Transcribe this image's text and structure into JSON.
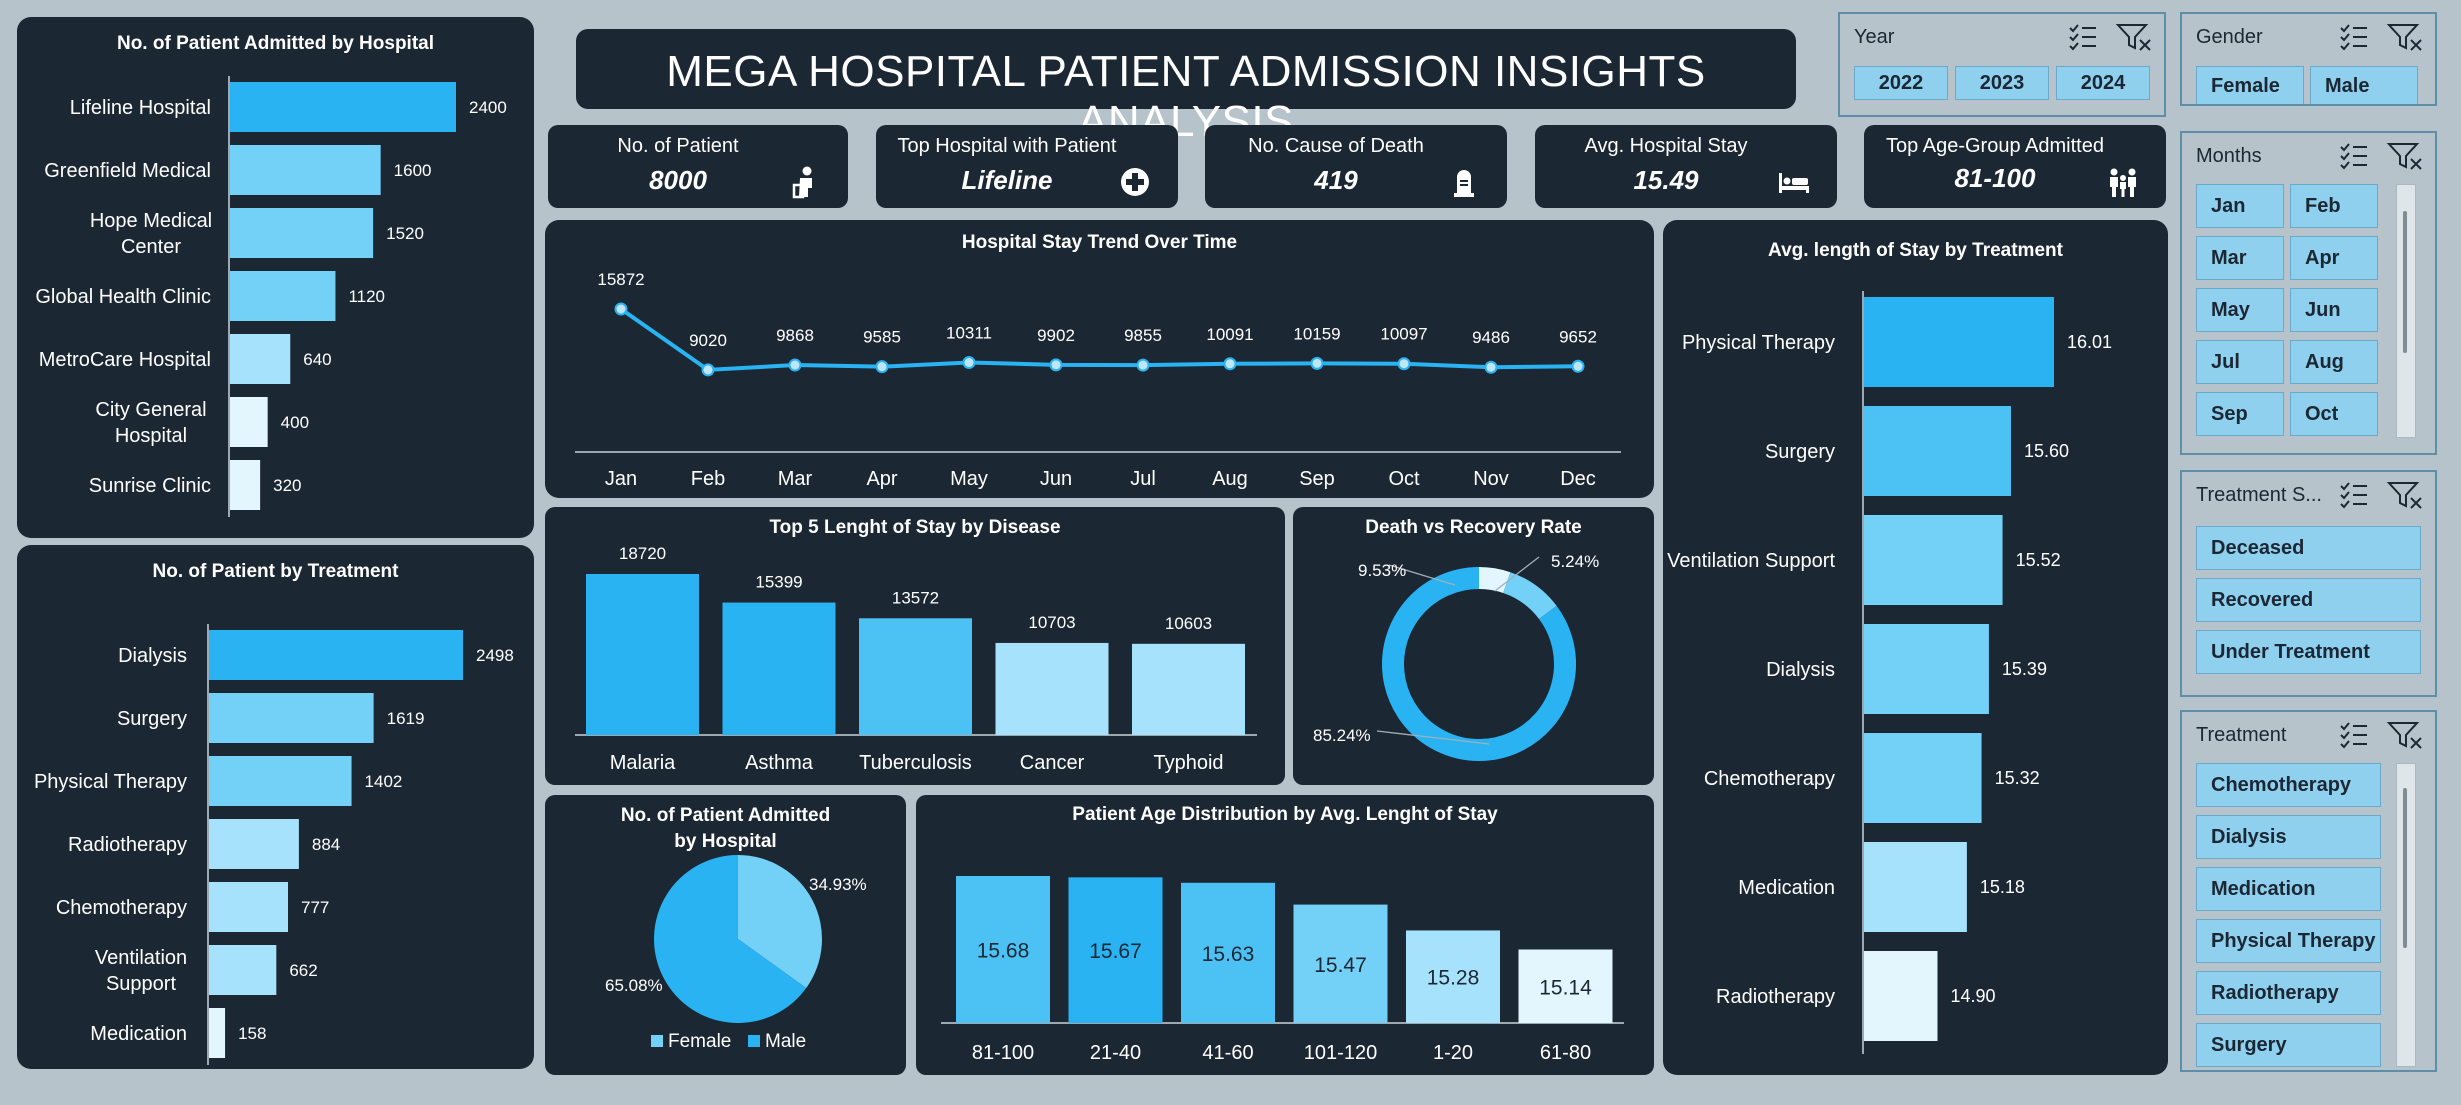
{
  "dashboard": {
    "title": "MEGA HOSPITAL PATIENT ADMISSION INSIGHTS ANALYSIS"
  },
  "kpis": [
    {
      "label": "No. of Patient",
      "value": "8000",
      "icon": "patient-icon"
    },
    {
      "label": "Top Hospital with Patient",
      "value": "Lifeline",
      "icon": "medical-cross-icon"
    },
    {
      "label": "No. Cause of Death",
      "value": "419",
      "icon": "tombstone-icon"
    },
    {
      "label": "Avg. Hospital Stay",
      "value": "15.49",
      "icon": "hospital-bed-icon"
    },
    {
      "label": "Top Age-Group Admitted",
      "value": "81-100",
      "icon": "family-icon"
    }
  ],
  "slicers": {
    "year": {
      "title": "Year",
      "options": [
        "2022",
        "2023",
        "2024"
      ]
    },
    "gender": {
      "title": "Gender",
      "options": [
        "Female",
        "Male"
      ]
    },
    "months": {
      "title": "Months",
      "options": [
        "Jan",
        "Feb",
        "Mar",
        "Apr",
        "May",
        "Jun",
        "Jul",
        "Aug",
        "Sep",
        "Oct"
      ]
    },
    "treatment_status": {
      "title": "Treatment S...",
      "options": [
        "Deceased",
        "Recovered",
        "Under Treatment"
      ]
    },
    "treatment": {
      "title": "Treatment",
      "options": [
        "Chemotherapy",
        "Dialysis",
        "Medication",
        "Physical Therapy",
        "Radiotherapy",
        "Surgery"
      ]
    }
  },
  "colors": {
    "panel": "#1c2734",
    "background": "#b7c3cb",
    "shade1": "#29b3f2",
    "shade2": "#4cc1f3",
    "shade3": "#73d0f7",
    "shade4": "#a6e2fb",
    "shade5": "#e3f5fd"
  },
  "chart_data": [
    {
      "id": "admitted-by-hospital",
      "type": "bar",
      "orientation": "horizontal",
      "title": "No. of Patient Admitted by Hospital",
      "categories": [
        "Lifeline Hospital",
        "Greenfield Medical",
        "Hope Medical Center",
        "Global Health Clinic",
        "MetroCare Hospital",
        "City General Hospital",
        "Sunrise Clinic"
      ],
      "values": [
        2400,
        1600,
        1520,
        1120,
        640,
        400,
        320
      ],
      "xlim": [
        0,
        2400
      ]
    },
    {
      "id": "patient-by-treatment",
      "type": "bar",
      "orientation": "horizontal",
      "title": "No. of Patient by Treatment",
      "categories": [
        "Dialysis",
        "Surgery",
        "Physical Therapy",
        "Radiotherapy",
        "Chemotherapy",
        "Ventilation Support",
        "Medication"
      ],
      "values": [
        2498,
        1619,
        1402,
        884,
        777,
        662,
        158
      ],
      "xlim": [
        0,
        2498
      ]
    },
    {
      "id": "stay-trend",
      "type": "line",
      "title": "Hospital Stay Trend Over Time",
      "categories": [
        "Jan",
        "Feb",
        "Mar",
        "Apr",
        "May",
        "Jun",
        "Jul",
        "Aug",
        "Sep",
        "Oct",
        "Nov",
        "Dec"
      ],
      "values": [
        15872,
        9020,
        9868,
        9585,
        10311,
        9902,
        9855,
        10091,
        10159,
        10097,
        9486,
        9652
      ]
    },
    {
      "id": "top5-disease",
      "type": "bar",
      "title": "Top 5 Lenght of Stay by Disease",
      "categories": [
        "Malaria",
        "Asthma",
        "Tuberculosis",
        "Cancer",
        "Typhoid"
      ],
      "values": [
        18720,
        15399,
        13572,
        10703,
        10603
      ],
      "ylim": [
        0,
        18720
      ]
    },
    {
      "id": "death-vs-recovery",
      "type": "pie",
      "donut": true,
      "title": "Death vs Recovery Rate",
      "labels": [
        "5.24%",
        "9.53%",
        "85.24%"
      ],
      "values": [
        5.24,
        9.53,
        85.24
      ]
    },
    {
      "id": "admitted-by-gender",
      "type": "pie",
      "title": "No. of Patient Admitted by Hospital",
      "legend": [
        "Female",
        "Male"
      ],
      "labels": [
        "34.93%",
        "65.08%"
      ],
      "values": [
        34.93,
        65.08
      ],
      "legend_position": "bottom"
    },
    {
      "id": "age-distribution",
      "type": "bar",
      "title": "Patient Age Distribution by Avg. Lenght of Stay",
      "categories": [
        "81-100",
        "21-40",
        "41-60",
        "101-120",
        "1-20",
        "61-80"
      ],
      "values": [
        15.68,
        15.67,
        15.63,
        15.47,
        15.28,
        15.14
      ],
      "labels": [
        "15.68",
        "15.67",
        "15.63",
        "15.47",
        "15.28",
        "15.14"
      ]
    },
    {
      "id": "avg-stay-by-treatment",
      "type": "bar",
      "orientation": "horizontal",
      "title": "Avg. length of Stay by Treatment",
      "categories": [
        "Physical Therapy",
        "Surgery",
        "Ventilation Support",
        "Dialysis",
        "Chemotherapy",
        "Medication",
        "Radiotherapy"
      ],
      "values": [
        16.01,
        15.6,
        15.52,
        15.39,
        15.32,
        15.18,
        14.9
      ],
      "labels": [
        "16.01",
        "15.60",
        "15.52",
        "15.39",
        "15.32",
        "15.18",
        "14.90"
      ]
    }
  ]
}
